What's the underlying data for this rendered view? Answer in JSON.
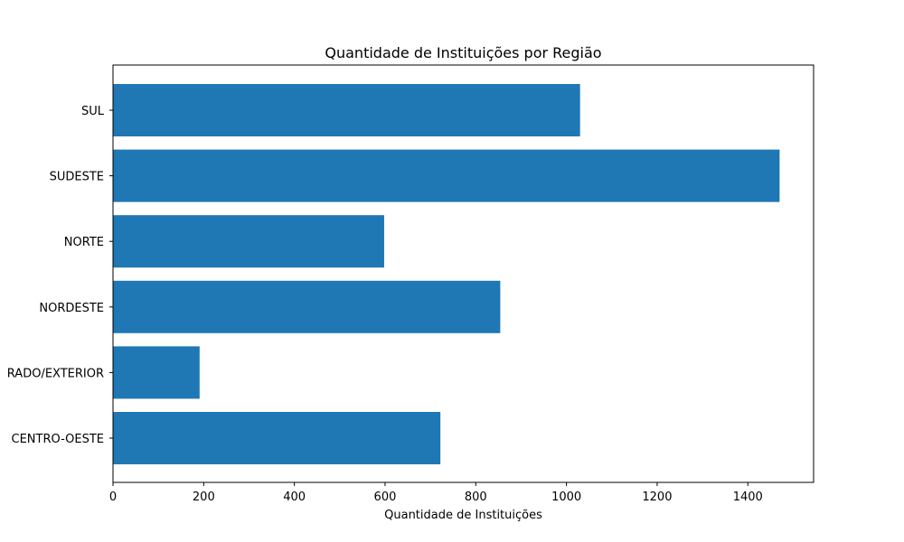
{
  "chart_data": {
    "type": "bar",
    "orientation": "horizontal",
    "title": "Quantidade de Instituições por Região",
    "xlabel": "Quantidade de Instituições",
    "ylabel": "",
    "categories": [
      "SUL",
      "SUDESTE",
      "NORTE",
      "NORDESTE",
      "RADO/EXTERIOR",
      "CENTRO-OESTE"
    ],
    "values": [
      1030,
      1470,
      598,
      854,
      191,
      722
    ],
    "xlim": [
      0,
      1545
    ],
    "xticks": [
      0,
      200,
      400,
      600,
      800,
      1000,
      1200,
      1400
    ],
    "grid": false,
    "bar_color": "#1f77b4"
  }
}
